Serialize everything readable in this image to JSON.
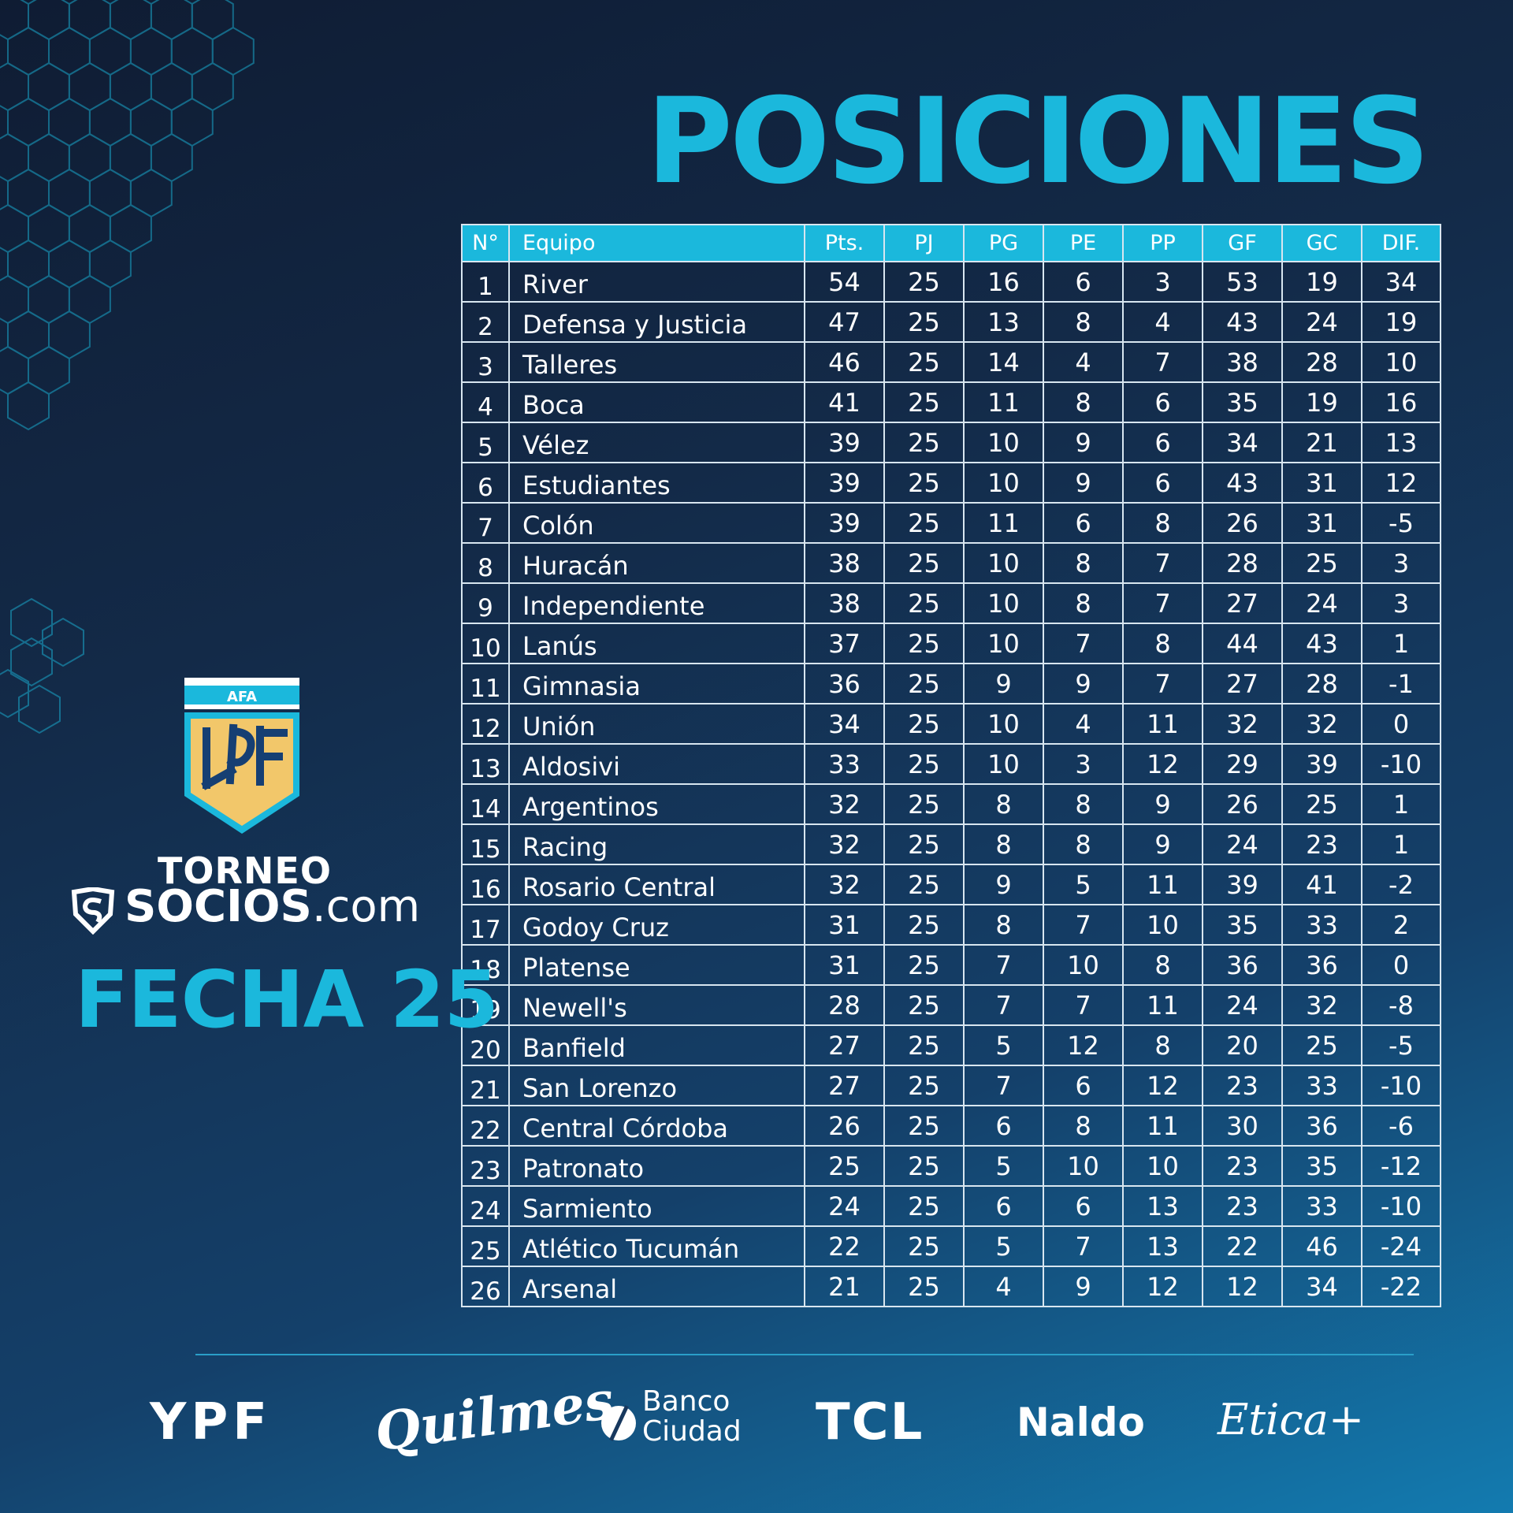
{
  "title": "POSICIONES",
  "table": {
    "headers": [
      "N°",
      "Equipo",
      "Pts.",
      "PJ",
      "PG",
      "PE",
      "PP",
      "GF",
      "GC",
      "DIF."
    ],
    "rows": [
      [
        "1",
        "River",
        "54",
        "25",
        "16",
        "6",
        "3",
        "53",
        "19",
        "34"
      ],
      [
        "2",
        "Defensa y Justicia",
        "47",
        "25",
        "13",
        "8",
        "4",
        "43",
        "24",
        "19"
      ],
      [
        "3",
        "Talleres",
        "46",
        "25",
        "14",
        "4",
        "7",
        "38",
        "28",
        "10"
      ],
      [
        "4",
        "Boca",
        "41",
        "25",
        "11",
        "8",
        "6",
        "35",
        "19",
        "16"
      ],
      [
        "5",
        "Vélez",
        "39",
        "25",
        "10",
        "9",
        "6",
        "34",
        "21",
        "13"
      ],
      [
        "6",
        "Estudiantes",
        "39",
        "25",
        "10",
        "9",
        "6",
        "43",
        "31",
        "12"
      ],
      [
        "7",
        "Colón",
        "39",
        "25",
        "11",
        "6",
        "8",
        "26",
        "31",
        "-5"
      ],
      [
        "8",
        "Huracán",
        "38",
        "25",
        "10",
        "8",
        "7",
        "28",
        "25",
        "3"
      ],
      [
        "9",
        "Independiente",
        "38",
        "25",
        "10",
        "8",
        "7",
        "27",
        "24",
        "3"
      ],
      [
        "10",
        "Lanús",
        "37",
        "25",
        "10",
        "7",
        "8",
        "44",
        "43",
        "1"
      ],
      [
        "11",
        "Gimnasia",
        "36",
        "25",
        "9",
        "9",
        "7",
        "27",
        "28",
        "-1"
      ],
      [
        "12",
        "Unión",
        "34",
        "25",
        "10",
        "4",
        "11",
        "32",
        "32",
        "0"
      ],
      [
        "13",
        "Aldosivi",
        "33",
        "25",
        "10",
        "3",
        "12",
        "29",
        "39",
        "-10"
      ],
      [
        "14",
        "Argentinos",
        "32",
        "25",
        "8",
        "8",
        "9",
        "26",
        "25",
        "1"
      ],
      [
        "15",
        "Racing",
        "32",
        "25",
        "8",
        "8",
        "9",
        "24",
        "23",
        "1"
      ],
      [
        "16",
        "Rosario Central",
        "32",
        "25",
        "9",
        "5",
        "11",
        "39",
        "41",
        "-2"
      ],
      [
        "17",
        "Godoy Cruz",
        "31",
        "25",
        "8",
        "7",
        "10",
        "35",
        "33",
        "2"
      ],
      [
        "18",
        "Platense",
        "31",
        "25",
        "7",
        "10",
        "8",
        "36",
        "36",
        "0"
      ],
      [
        "19",
        "Newell's",
        "28",
        "25",
        "7",
        "7",
        "11",
        "24",
        "32",
        "-8"
      ],
      [
        "20",
        "Banfield",
        "27",
        "25",
        "5",
        "12",
        "8",
        "20",
        "25",
        "-5"
      ],
      [
        "21",
        "San Lorenzo",
        "27",
        "25",
        "7",
        "6",
        "12",
        "23",
        "33",
        "-10"
      ],
      [
        "22",
        "Central Córdoba",
        "26",
        "25",
        "6",
        "8",
        "11",
        "30",
        "36",
        "-6"
      ],
      [
        "23",
        "Patronato",
        "25",
        "25",
        "5",
        "10",
        "10",
        "23",
        "35",
        "-12"
      ],
      [
        "24",
        "Sarmiento",
        "24",
        "25",
        "6",
        "6",
        "13",
        "23",
        "33",
        "-10"
      ],
      [
        "25",
        "Atlético Tucumán",
        "22",
        "25",
        "5",
        "7",
        "13",
        "22",
        "46",
        "-24"
      ],
      [
        "26",
        "Arsenal",
        "21",
        "25",
        "4",
        "9",
        "12",
        "12",
        "34",
        "-22"
      ]
    ]
  },
  "logo": {
    "afa_label": "AFA",
    "torneo": "TORNEO",
    "socios_bold": "SOCIOS",
    "socios_light": ".com"
  },
  "fecha": "FECHA 25",
  "sponsors": {
    "ypf": "YPF",
    "quilmes": "Quilmes",
    "banco": "Banco\nCiudad",
    "tcl": "TCL",
    "naldo": "Naldo",
    "etica": "Etica+"
  },
  "colors": {
    "accent": "#1bb8dc",
    "background_dark": "#0f1c33",
    "background_light": "#137bb0",
    "shield_gold": "#f2c76a"
  }
}
